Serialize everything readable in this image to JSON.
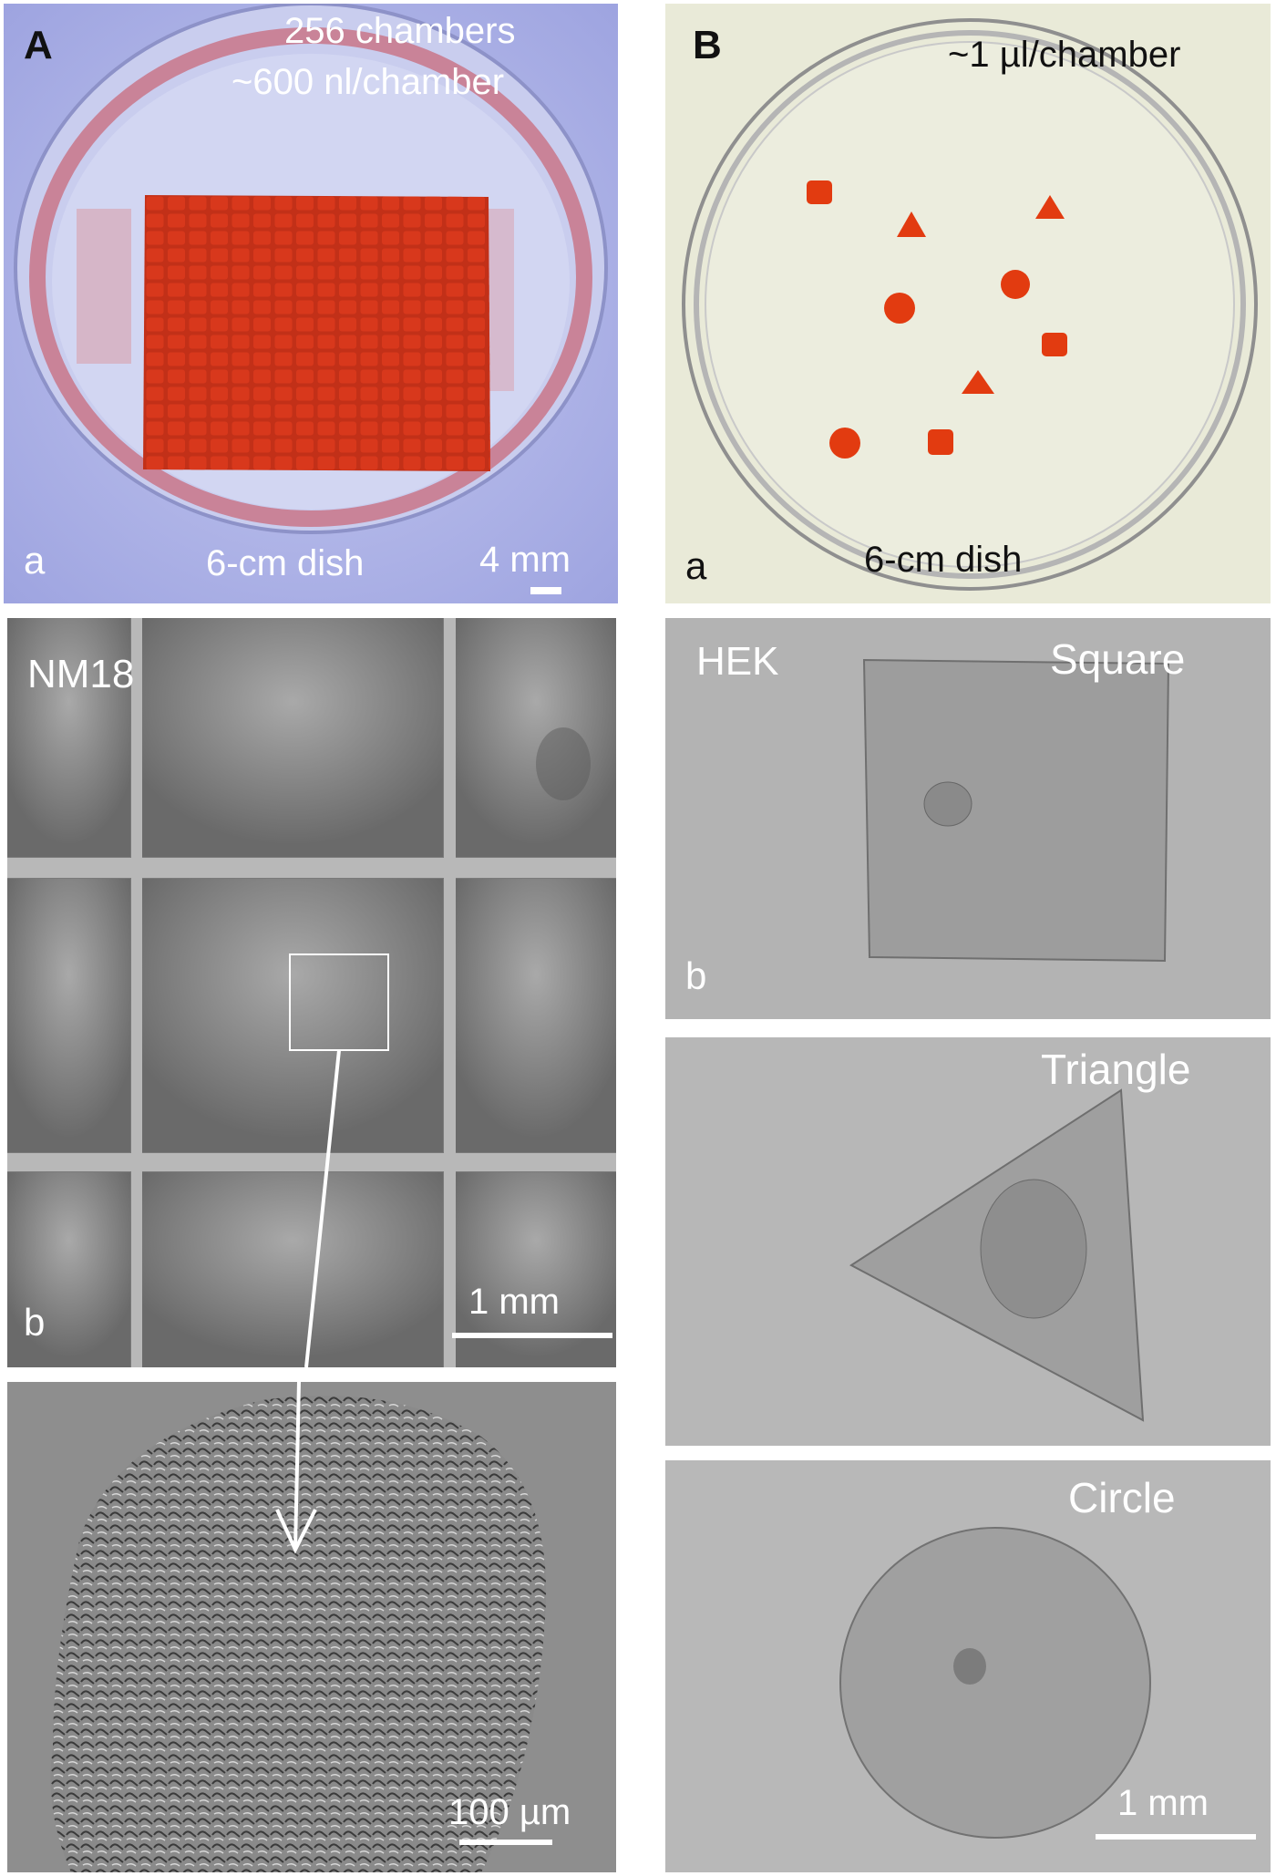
{
  "panelA": {
    "letter": "A",
    "sub": "a",
    "chambers": "256 chambers",
    "volume": "~600 nl/chamber",
    "dish": "6-cm dish",
    "scale": "4 mm",
    "colors": {
      "bg": "#a9aee6",
      "chamber": "#d93a1e"
    }
  },
  "panelA_b": {
    "cell_label": "NM18",
    "sub": "b",
    "scale": "1 mm"
  },
  "panelA_c": {
    "scale": "100 µm"
  },
  "panelB": {
    "letter": "B",
    "sub": "a",
    "volume": "~1 µl/chamber",
    "dish": "6-cm dish",
    "colors": {
      "bg": "#e9ead8",
      "chamber": "#e23b10"
    }
  },
  "panelB_square": {
    "cell_label": "HEK",
    "shape": "Square",
    "sub": "b"
  },
  "panelB_triangle": {
    "shape": "Triangle"
  },
  "panelB_circle": {
    "shape": "Circle",
    "scale": "1 mm"
  }
}
